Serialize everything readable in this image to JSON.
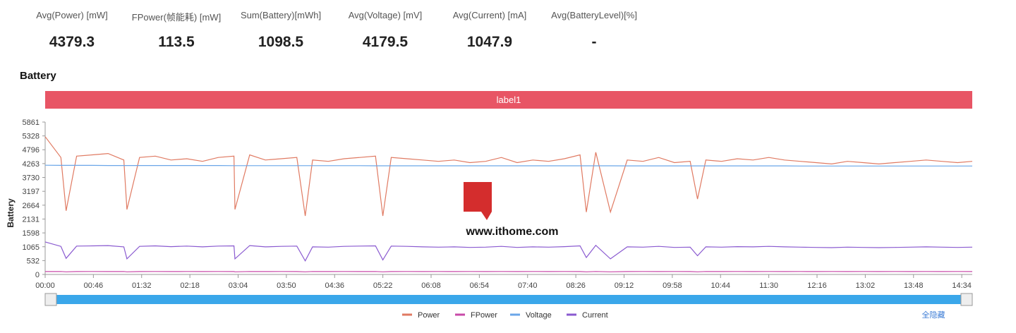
{
  "stats": [
    {
      "label": "Avg(Power) [mW]",
      "value": "4379.3"
    },
    {
      "label": "FPower(帧能耗) [mW]",
      "value": "113.5"
    },
    {
      "label": "Sum(Battery)[mWh]",
      "value": "1098.5"
    },
    {
      "label": "Avg(Voltage) [mV]",
      "value": "4179.5"
    },
    {
      "label": "Avg(Current) [mA]",
      "value": "1047.9"
    },
    {
      "label": "Avg(BatteryLevel)[%]",
      "value": "-"
    }
  ],
  "section_title": "Battery",
  "banner": "label1",
  "watermark": "www.ithome.com",
  "hide_all": "全隐藏",
  "chart_data": {
    "type": "line",
    "ylabel": "Battery",
    "x": [
      0,
      15,
      20,
      30,
      45,
      60,
      75,
      78,
      90,
      105,
      120,
      135,
      150,
      165,
      180,
      181,
      195,
      210,
      225,
      240,
      248,
      255,
      270,
      285,
      300,
      315,
      322,
      330,
      345,
      360,
      375,
      390,
      405,
      420,
      435,
      450,
      465,
      480,
      495,
      510,
      516,
      525,
      539,
      555,
      570,
      585,
      600,
      615,
      622,
      630,
      645,
      660,
      675,
      690,
      705,
      720,
      735,
      750,
      765,
      780,
      795,
      810,
      825,
      840,
      855,
      870,
      884
    ],
    "xlim": [
      0,
      884
    ],
    "xticks": [
      {
        "value": 0,
        "label": "00:00"
      },
      {
        "value": 46,
        "label": "00:46"
      },
      {
        "value": 92,
        "label": "01:32"
      },
      {
        "value": 138,
        "label": "02:18"
      },
      {
        "value": 184,
        "label": "03:04"
      },
      {
        "value": 230,
        "label": "03:50"
      },
      {
        "value": 276,
        "label": "04:36"
      },
      {
        "value": 322,
        "label": "05:22"
      },
      {
        "value": 368,
        "label": "06:08"
      },
      {
        "value": 414,
        "label": "06:54"
      },
      {
        "value": 460,
        "label": "07:40"
      },
      {
        "value": 506,
        "label": "08:26"
      },
      {
        "value": 552,
        "label": "09:12"
      },
      {
        "value": 598,
        "label": "09:58"
      },
      {
        "value": 644,
        "label": "10:44"
      },
      {
        "value": 690,
        "label": "11:30"
      },
      {
        "value": 736,
        "label": "12:16"
      },
      {
        "value": 782,
        "label": "13:02"
      },
      {
        "value": 828,
        "label": "13:48"
      },
      {
        "value": 874,
        "label": "14:34"
      }
    ],
    "ylim": [
      0,
      5861
    ],
    "yticks": [
      0,
      532,
      1065,
      1598,
      2131,
      2664,
      3197,
      3730,
      4263,
      4796,
      5328,
      5861
    ],
    "series": [
      {
        "name": "Power",
        "color": "#e07a62",
        "values": [
          5300,
          4500,
          2450,
          4550,
          4600,
          4650,
          4400,
          2500,
          4500,
          4550,
          4400,
          4450,
          4350,
          4500,
          4550,
          2500,
          4600,
          4400,
          4450,
          4500,
          2250,
          4400,
          4350,
          4450,
          4500,
          4550,
          2250,
          4500,
          4450,
          4400,
          4350,
          4400,
          4300,
          4350,
          4500,
          4300,
          4400,
          4350,
          4450,
          4600,
          2400,
          4700,
          2400,
          4400,
          4350,
          4500,
          4300,
          4350,
          2900,
          4400,
          4350,
          4450,
          4400,
          4500,
          4400,
          4350,
          4300,
          4250,
          4350,
          4300,
          4250,
          4300,
          4350,
          4400,
          4350,
          4300,
          4350
        ]
      },
      {
        "name": "FPower",
        "color": "#c84aa8",
        "values": [
          110,
          115,
          100,
          110,
          115,
          110,
          115,
          100,
          110,
          115,
          110,
          115,
          110,
          115,
          110,
          100,
          115,
          110,
          115,
          110,
          100,
          115,
          110,
          115,
          110,
          115,
          100,
          110,
          115,
          110,
          115,
          110,
          115,
          110,
          115,
          110,
          115,
          110,
          115,
          110,
          100,
          115,
          100,
          110,
          115,
          110,
          115,
          110,
          100,
          115,
          110,
          115,
          110,
          115,
          110,
          115,
          110,
          115,
          110,
          115,
          110,
          115,
          110,
          115,
          110,
          115,
          110
        ]
      },
      {
        "name": "Voltage",
        "color": "#6aa6e8",
        "values": [
          4200,
          4195,
          4195,
          4195,
          4195,
          4190,
          4190,
          4190,
          4190,
          4190,
          4190,
          4190,
          4190,
          4190,
          4185,
          4185,
          4185,
          4185,
          4185,
          4185,
          4185,
          4185,
          4185,
          4185,
          4185,
          4180,
          4180,
          4180,
          4180,
          4180,
          4180,
          4180,
          4180,
          4180,
          4180,
          4180,
          4180,
          4180,
          4180,
          4180,
          4180,
          4180,
          4180,
          4175,
          4175,
          4175,
          4175,
          4175,
          4175,
          4175,
          4175,
          4175,
          4175,
          4175,
          4175,
          4170,
          4170,
          4170,
          4170,
          4170,
          4170,
          4170,
          4170,
          4170,
          4170,
          4170,
          4170
        ]
      },
      {
        "name": "Current",
        "color": "#8a5ad0",
        "values": [
          1250,
          1080,
          620,
          1090,
          1100,
          1110,
          1060,
          600,
          1080,
          1100,
          1070,
          1090,
          1060,
          1090,
          1100,
          600,
          1110,
          1060,
          1080,
          1090,
          520,
          1060,
          1050,
          1080,
          1090,
          1100,
          560,
          1090,
          1080,
          1060,
          1050,
          1060,
          1040,
          1050,
          1080,
          1040,
          1060,
          1050,
          1070,
          1100,
          650,
          1120,
          600,
          1060,
          1050,
          1080,
          1040,
          1050,
          720,
          1060,
          1050,
          1070,
          1060,
          1080,
          1060,
          1050,
          1040,
          1030,
          1050,
          1040,
          1030,
          1040,
          1050,
          1060,
          1050,
          1040,
          1050
        ]
      }
    ]
  }
}
